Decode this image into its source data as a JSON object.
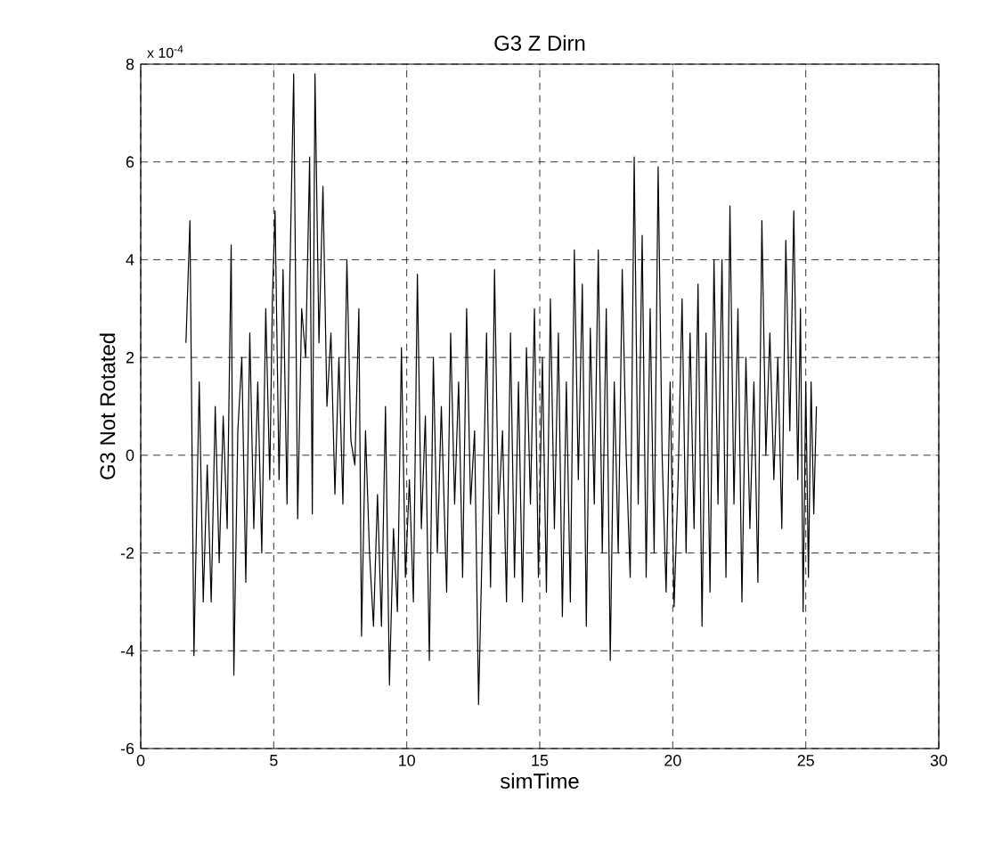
{
  "chart_data": {
    "type": "line",
    "title": "G3 Z Dirn",
    "xlabel": "simTime",
    "ylabel": "G3 Not Rotated",
    "annotations": [
      "x 10$^{-4}$"
    ],
    "xlim": [
      0,
      30
    ],
    "xticks": [
      0,
      5,
      10,
      15,
      20,
      25,
      30
    ],
    "ylim": [
      -6,
      8
    ],
    "yticks": [
      -6,
      -4,
      -2,
      0,
      2,
      4,
      6,
      8
    ],
    "grid": true,
    "marker": "none",
    "line_style": "solid",
    "series": [
      {
        "color": "#000000",
        "x": [
          1.7,
          1.85,
          2.0,
          2.2,
          2.35,
          2.5,
          2.65,
          2.8,
          2.95,
          3.1,
          3.25,
          3.4,
          3.5,
          3.65,
          3.8,
          3.95,
          4.1,
          4.25,
          4.4,
          4.55,
          4.7,
          4.85,
          4.95,
          5.05,
          5.2,
          5.35,
          5.5,
          5.6,
          5.75,
          5.9,
          6.05,
          6.2,
          6.35,
          6.45,
          6.55,
          6.7,
          6.85,
          7.0,
          7.15,
          7.3,
          7.45,
          7.6,
          7.75,
          7.9,
          8.05,
          8.2,
          8.3,
          8.45,
          8.6,
          8.75,
          8.9,
          9.05,
          9.2,
          9.35,
          9.5,
          9.65,
          9.8,
          9.95,
          10.1,
          10.25,
          10.4,
          10.55,
          10.7,
          10.85,
          11.0,
          11.15,
          11.3,
          11.5,
          11.65,
          11.8,
          11.95,
          12.1,
          12.25,
          12.4,
          12.55,
          12.7,
          12.85,
          13.0,
          13.15,
          13.3,
          13.45,
          13.6,
          13.75,
          13.9,
          14.05,
          14.2,
          14.35,
          14.5,
          14.65,
          14.8,
          14.95,
          15.1,
          15.25,
          15.4,
          15.55,
          15.7,
          15.85,
          16.0,
          16.15,
          16.3,
          16.45,
          16.6,
          16.75,
          16.9,
          17.05,
          17.2,
          17.35,
          17.5,
          17.65,
          17.8,
          17.95,
          18.1,
          18.25,
          18.4,
          18.55,
          18.7,
          18.85,
          19.0,
          19.15,
          19.3,
          19.45,
          19.6,
          19.75,
          19.9,
          20.05,
          20.2,
          20.35,
          20.5,
          20.65,
          20.8,
          20.95,
          21.1,
          21.25,
          21.4,
          21.55,
          21.7,
          21.85,
          22.0,
          22.15,
          22.3,
          22.45,
          22.6,
          22.75,
          22.9,
          23.05,
          23.2,
          23.35,
          23.5,
          23.65,
          23.8,
          23.95,
          24.1,
          24.25,
          24.4,
          24.55,
          24.7,
          24.8,
          24.9,
          25.0,
          25.1,
          25.2,
          25.3,
          25.4
        ],
        "values": [
          2.3,
          4.8,
          -4.1,
          1.5,
          -3.0,
          -0.2,
          -3.0,
          1.0,
          -2.2,
          0.8,
          -1.5,
          4.3,
          -4.5,
          0.5,
          2.0,
          -2.6,
          2.5,
          -1.5,
          1.5,
          -2.0,
          3.0,
          -0.5,
          3.2,
          5.0,
          -0.5,
          3.8,
          -1.0,
          3.5,
          7.8,
          -1.3,
          3.0,
          2.0,
          6.1,
          -1.2,
          7.8,
          2.3,
          5.5,
          1.0,
          2.5,
          -0.8,
          2.0,
          -1.0,
          4.0,
          0.3,
          -0.2,
          3.0,
          -3.7,
          0.5,
          -2.0,
          -3.5,
          -0.8,
          -3.5,
          1.0,
          -4.7,
          -1.5,
          -3.2,
          2.2,
          -2.5,
          -0.5,
          -3.0,
          3.7,
          -1.5,
          0.8,
          -4.2,
          2.0,
          -2.0,
          1.0,
          -2.8,
          2.5,
          -1.0,
          1.5,
          -2.5,
          3.0,
          -1.0,
          0.5,
          -5.1,
          -1.5,
          2.5,
          -2.7,
          3.8,
          -1.2,
          0.5,
          -3.0,
          2.5,
          -2.5,
          1.5,
          -3.0,
          2.2,
          -1.0,
          3.0,
          -2.5,
          2.0,
          -2.8,
          3.2,
          -1.5,
          2.5,
          -3.3,
          1.5,
          -3.0,
          4.2,
          -0.5,
          3.5,
          -3.5,
          2.6,
          -1.0,
          4.2,
          -2.0,
          3.0,
          -4.2,
          1.5,
          -2.0,
          3.8,
          0.0,
          -2.5,
          6.1,
          -1.0,
          4.5,
          -2.5,
          3.0,
          -2.0,
          5.9,
          0.0,
          -2.8,
          1.5,
          -3.1,
          -0.5,
          3.2,
          -2.0,
          2.5,
          -1.5,
          3.5,
          -3.5,
          2.5,
          -2.8,
          4.0,
          -1.0,
          4.0,
          -2.5,
          5.1,
          -1.0,
          3.0,
          -3.0,
          2.0,
          -1.5,
          1.5,
          -2.6,
          4.8,
          0.0,
          2.5,
          -0.5,
          2.0,
          -1.5,
          4.4,
          0.5,
          5.0,
          -0.5,
          3.0,
          -3.2,
          1.5,
          -2.5,
          1.5,
          -1.2,
          1.0
        ]
      }
    ]
  }
}
